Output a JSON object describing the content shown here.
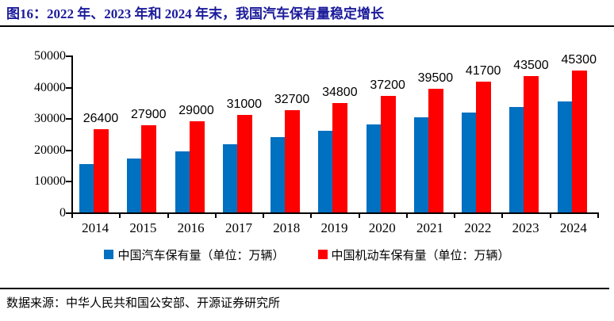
{
  "header": {
    "title": "图16：2022 年、2023 年和 2024 年末，我国汽车保有量稳定增长",
    "title_color": "#1b1b9b"
  },
  "chart_data": {
    "type": "bar",
    "title": "",
    "categories": [
      "2014",
      "2015",
      "2016",
      "2017",
      "2018",
      "2019",
      "2020",
      "2021",
      "2022",
      "2023",
      "2024"
    ],
    "series": [
      {
        "name": "中国汽车保有量（单位：万辆）",
        "color": "#0070C0",
        "values": [
          15400,
          17200,
          19400,
          21700,
          24000,
          26100,
          28100,
          30200,
          31900,
          33600,
          35300
        ],
        "data_labels_visible": false
      },
      {
        "name": "中国机动车保有量（单位：万辆）",
        "color": "#FF0000",
        "values": [
          26400,
          27900,
          29000,
          31000,
          32700,
          34800,
          37200,
          39500,
          41700,
          43500,
          45300
        ],
        "data_labels_visible": true,
        "data_labels": [
          "26400",
          "27900",
          "29000",
          "31000",
          "32700",
          "34800",
          "37200",
          "39500",
          "41700",
          "43500",
          "45300"
        ]
      }
    ],
    "xlabel": "",
    "ylabel": "",
    "ylim": [
      0,
      50000
    ],
    "yticks": [
      "0",
      "10000",
      "20000",
      "30000",
      "40000",
      "50000"
    ],
    "grid": false,
    "legend_position": "bottom",
    "axis_color": "#000000",
    "label_color": "#000000"
  },
  "footer": {
    "source": "数据来源：中华人民共和国公安部、开源证券研究所"
  }
}
